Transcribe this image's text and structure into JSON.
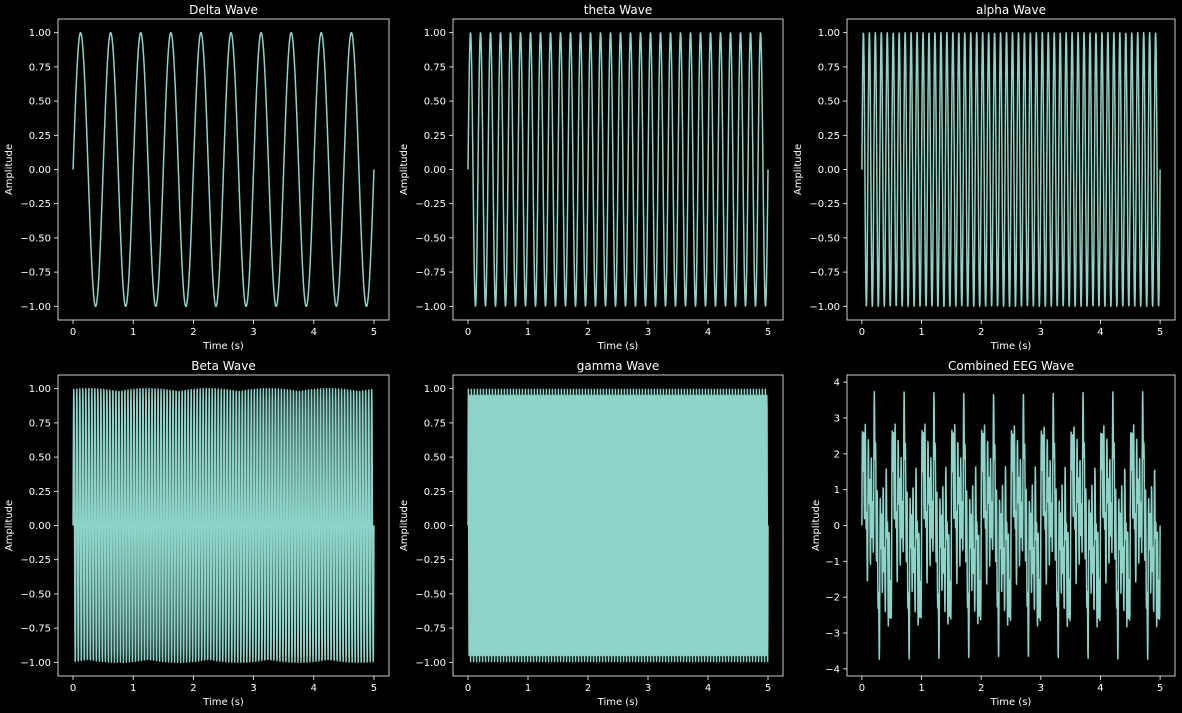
{
  "figure": {
    "background": "#000000",
    "foreground": "#ffffff",
    "line_color": "#8dd3c7"
  },
  "chart_data": [
    {
      "type": "line",
      "title": "Delta Wave",
      "xlabel": "Time (s)",
      "ylabel": "Amplitude",
      "xlim": [
        -0.25,
        5.25
      ],
      "ylim": [
        -1.1,
        1.1
      ],
      "xticks": [
        0,
        1,
        2,
        3,
        4,
        5
      ],
      "xtick_labels": [
        "0",
        "1",
        "2",
        "3",
        "4",
        "5"
      ],
      "yticks": [
        -1.0,
        -0.75,
        -0.5,
        -0.25,
        0.0,
        0.25,
        0.5,
        0.75,
        1.0
      ],
      "ytick_labels": [
        "−1.00",
        "−0.75",
        "−0.50",
        "−0.25",
        "0.00",
        "0.25",
        "0.50",
        "0.75",
        "1.00"
      ],
      "grid": false,
      "series": [
        {
          "formula": "sin(2*pi*f*t)",
          "frequency_hz": 2,
          "t_start": 0,
          "t_end": 5,
          "amplitude": 1
        }
      ]
    },
    {
      "type": "line",
      "title": "theta Wave",
      "xlabel": "Time (s)",
      "ylabel": "Amplitude",
      "xlim": [
        -0.25,
        5.25
      ],
      "ylim": [
        -1.1,
        1.1
      ],
      "xticks": [
        0,
        1,
        2,
        3,
        4,
        5
      ],
      "xtick_labels": [
        "0",
        "1",
        "2",
        "3",
        "4",
        "5"
      ],
      "yticks": [
        -1.0,
        -0.75,
        -0.5,
        -0.25,
        0.0,
        0.25,
        0.5,
        0.75,
        1.0
      ],
      "ytick_labels": [
        "−1.00",
        "−0.75",
        "−0.50",
        "−0.25",
        "0.00",
        "0.25",
        "0.50",
        "0.75",
        "1.00"
      ],
      "grid": false,
      "series": [
        {
          "formula": "sin(2*pi*f*t)",
          "frequency_hz": 6,
          "t_start": 0,
          "t_end": 5,
          "amplitude": 1
        }
      ]
    },
    {
      "type": "line",
      "title": "alpha Wave",
      "xlabel": "Time (s)",
      "ylabel": "Amplitude",
      "xlim": [
        -0.25,
        5.25
      ],
      "ylim": [
        -1.1,
        1.1
      ],
      "xticks": [
        0,
        1,
        2,
        3,
        4,
        5
      ],
      "xtick_labels": [
        "0",
        "1",
        "2",
        "3",
        "4",
        "5"
      ],
      "yticks": [
        -1.0,
        -0.75,
        -0.5,
        -0.25,
        0.0,
        0.25,
        0.5,
        0.75,
        1.0
      ],
      "ytick_labels": [
        "−1.00",
        "−0.75",
        "−0.50",
        "−0.25",
        "0.00",
        "0.25",
        "0.50",
        "0.75",
        "1.00"
      ],
      "grid": false,
      "series": [
        {
          "formula": "sin(2*pi*f*t)",
          "frequency_hz": 10,
          "t_start": 0,
          "t_end": 5,
          "amplitude": 1
        }
      ]
    },
    {
      "type": "line",
      "title": "Beta Wave",
      "xlabel": "Time (s)",
      "ylabel": "Amplitude",
      "xlim": [
        -0.25,
        5.25
      ],
      "ylim": [
        -1.1,
        1.1
      ],
      "xticks": [
        0,
        1,
        2,
        3,
        4,
        5
      ],
      "xtick_labels": [
        "0",
        "1",
        "2",
        "3",
        "4",
        "5"
      ],
      "yticks": [
        -1.0,
        -0.75,
        -0.5,
        -0.25,
        0.0,
        0.25,
        0.5,
        0.75,
        1.0
      ],
      "ytick_labels": [
        "−1.00",
        "−0.75",
        "−0.50",
        "−0.25",
        "0.00",
        "0.25",
        "0.50",
        "0.75",
        "1.00"
      ],
      "grid": false,
      "series": [
        {
          "formula": "sin(2*pi*f*t)",
          "frequency_hz": 20,
          "t_start": 0,
          "t_end": 5,
          "amplitude": 1
        }
      ]
    },
    {
      "type": "line",
      "title": "gamma Wave",
      "xlabel": "Time (s)",
      "ylabel": "Amplitude",
      "xlim": [
        -0.25,
        5.25
      ],
      "ylim": [
        -1.1,
        1.1
      ],
      "xticks": [
        0,
        1,
        2,
        3,
        4,
        5
      ],
      "xtick_labels": [
        "0",
        "1",
        "2",
        "3",
        "4",
        "5"
      ],
      "yticks": [
        -1.0,
        -0.75,
        -0.5,
        -0.25,
        0.0,
        0.25,
        0.5,
        0.75,
        1.0
      ],
      "ytick_labels": [
        "−1.00",
        "−0.75",
        "−0.50",
        "−0.25",
        "0.00",
        "0.25",
        "0.50",
        "0.75",
        "1.00"
      ],
      "grid": false,
      "series": [
        {
          "formula": "sin(2*pi*f*t)",
          "frequency_hz": 40,
          "t_start": 0,
          "t_end": 5,
          "amplitude": 1
        }
      ]
    },
    {
      "type": "line",
      "title": "Combined EEG Wave",
      "xlabel": "Time (s)",
      "ylabel": "Amplitude",
      "xlim": [
        -0.25,
        5.25
      ],
      "ylim": [
        -4.2,
        4.2
      ],
      "xticks": [
        0,
        1,
        2,
        3,
        4,
        5
      ],
      "xtick_labels": [
        "0",
        "1",
        "2",
        "3",
        "4",
        "5"
      ],
      "yticks": [
        -4,
        -3,
        -2,
        -1,
        0,
        1,
        2,
        3,
        4
      ],
      "ytick_labels": [
        "−4",
        "−3",
        "−2",
        "−1",
        "0",
        "1",
        "2",
        "3",
        "4"
      ],
      "grid": false,
      "series": [
        {
          "formula": "sum of sin(2*pi*f*t) for f in frequencies",
          "frequencies_hz": [
            2,
            6,
            10,
            20,
            40
          ],
          "t_start": 0,
          "t_end": 5,
          "amplitude": 1
        }
      ]
    }
  ]
}
